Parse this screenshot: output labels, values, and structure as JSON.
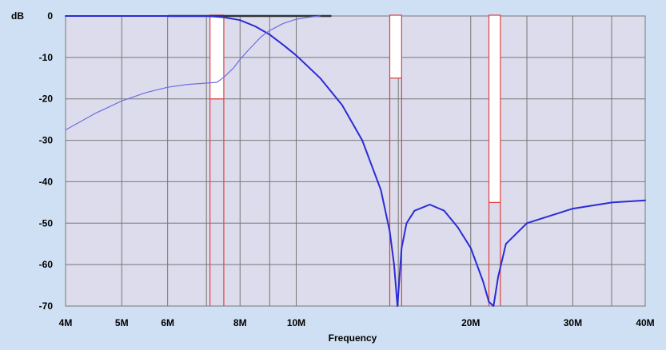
{
  "chart_data": {
    "type": "line",
    "title": "",
    "xlabel": "Frequency",
    "ylabel": "dB",
    "xscale": "log",
    "xlim": [
      4000000,
      40000000
    ],
    "ylim": [
      -70,
      0
    ],
    "grid": true,
    "legend": "none",
    "x_ticks": [
      {
        "value": 4000000,
        "label": "4M"
      },
      {
        "value": 5000000,
        "label": "5M"
      },
      {
        "value": 6000000,
        "label": "6M"
      },
      {
        "value": 8000000,
        "label": "8M"
      },
      {
        "value": 10000000,
        "label": "10M"
      },
      {
        "value": 20000000,
        "label": "20M"
      },
      {
        "value": 30000000,
        "label": "30M"
      },
      {
        "value": 40000000,
        "label": "40M"
      }
    ],
    "x_minor_ticks": [
      7000000,
      9000000,
      15000000,
      25000000,
      35000000
    ],
    "y_ticks": [
      {
        "value": 0,
        "label": "0"
      },
      {
        "value": -10,
        "label": "-10"
      },
      {
        "value": -20,
        "label": "-20"
      },
      {
        "value": -30,
        "label": "-30"
      },
      {
        "value": -40,
        "label": "-40"
      },
      {
        "value": -50,
        "label": "-50"
      },
      {
        "value": -60,
        "label": "-60"
      },
      {
        "value": -70,
        "label": "-70"
      }
    ],
    "colors": {
      "plot_bg": "#dcdcec",
      "outer_bg": "#cfe0f5",
      "grid": "#777777",
      "main_curve": "#2b2bd6",
      "secondary_curve": "#6e6ee0",
      "mask_fill": "#ffffff",
      "mask_stroke": "#e04040",
      "flat_top": "#333333"
    },
    "series": [
      {
        "style": "bold",
        "x": [
          4000000,
          5000000,
          6000000,
          7000000,
          7500000,
          8000000,
          8500000,
          9000000,
          9500000,
          10000000,
          11000000,
          12000000,
          13000000,
          14000000,
          14500000,
          14750000,
          14950000,
          15200000,
          15500000,
          16000000,
          17000000,
          18000000,
          19000000,
          20000000,
          21000000,
          21500000,
          21900000,
          22300000,
          23000000,
          25000000,
          30000000,
          35000000,
          40000000
        ],
        "y": [
          0,
          0,
          0,
          0,
          -0.3,
          -1,
          -2.5,
          -4.5,
          -7,
          -9.5,
          -15,
          -21.5,
          -30,
          -42,
          -52,
          -60,
          -70,
          -56,
          -50,
          -47,
          -45.5,
          -47,
          -51,
          -56,
          -64,
          -69,
          -70,
          -63,
          -55,
          -50,
          -46.5,
          -45,
          -44.5
        ]
      },
      {
        "style": "thin",
        "x": [
          4000000,
          4500000,
          5000000,
          5500000,
          6000000,
          6500000,
          7000000,
          7300000,
          7500000,
          7800000,
          8000000,
          8300000,
          8700000,
          9000000,
          9500000,
          10000000,
          10500000,
          11000000
        ],
        "y": [
          -27.5,
          -23.5,
          -20.5,
          -18.5,
          -17.2,
          -16.5,
          -16.2,
          -16,
          -14.8,
          -12.5,
          -10.5,
          -8,
          -5,
          -3.5,
          -1.8,
          -0.8,
          -0.3,
          0
        ]
      }
    ],
    "flat_top_segment": {
      "x": [
        6000000,
        11500000
      ],
      "y": 0
    },
    "mask_regions": [
      {
        "x_start": 7100000,
        "x_end": 7500000,
        "y_top": 0,
        "y_level": -20
      },
      {
        "x_start": 14500000,
        "x_end": 15200000,
        "y_top": 0,
        "y_level": -15
      },
      {
        "x_start": 21500000,
        "x_end": 22500000,
        "y_top": 0,
        "y_level": -45
      }
    ]
  }
}
